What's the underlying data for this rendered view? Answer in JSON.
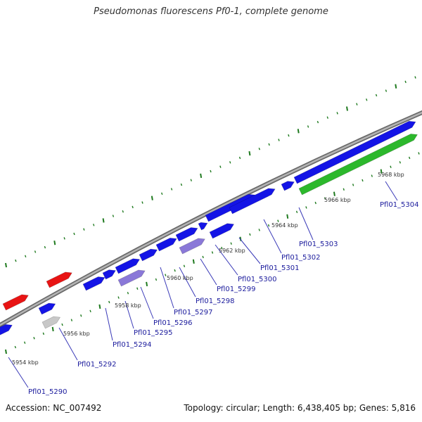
{
  "title": "Pseudomonas fluorescens Pf0-1, complete genome",
  "footer": {
    "accession": "Accession: NC_007492",
    "summary": "Topology: circular; Length: 6,438,405 bp; Genes: 5,816"
  },
  "colors": {
    "backbone": "#8c8c8c",
    "gene_blue": "#1414e6",
    "gene_lavender": "#8a78d8",
    "gene_red": "#e81414",
    "gene_gray": "#c8c8c8",
    "gene_green": "#2cb82c",
    "tick": "#1f7a1f",
    "label": "#1a1a9c"
  },
  "scale_labels": [
    "5954 kbp",
    "5956 kbp",
    "5958 kbp",
    "5960 kbp",
    "5962 kbp",
    "5964 kbp",
    "5966 kbp",
    "5968 kbp"
  ],
  "gene_labels": [
    "Pfl01_5290",
    "Pfl01_5292",
    "Pfl01_5294",
    "Pfl01_5295",
    "Pfl01_5296",
    "Pfl01_5297",
    "Pfl01_5298",
    "Pfl01_5299",
    "Pfl01_5300",
    "Pfl01_5301",
    "Pfl01_5302",
    "Pfl01_5303",
    "Pfl01_5304"
  ]
}
